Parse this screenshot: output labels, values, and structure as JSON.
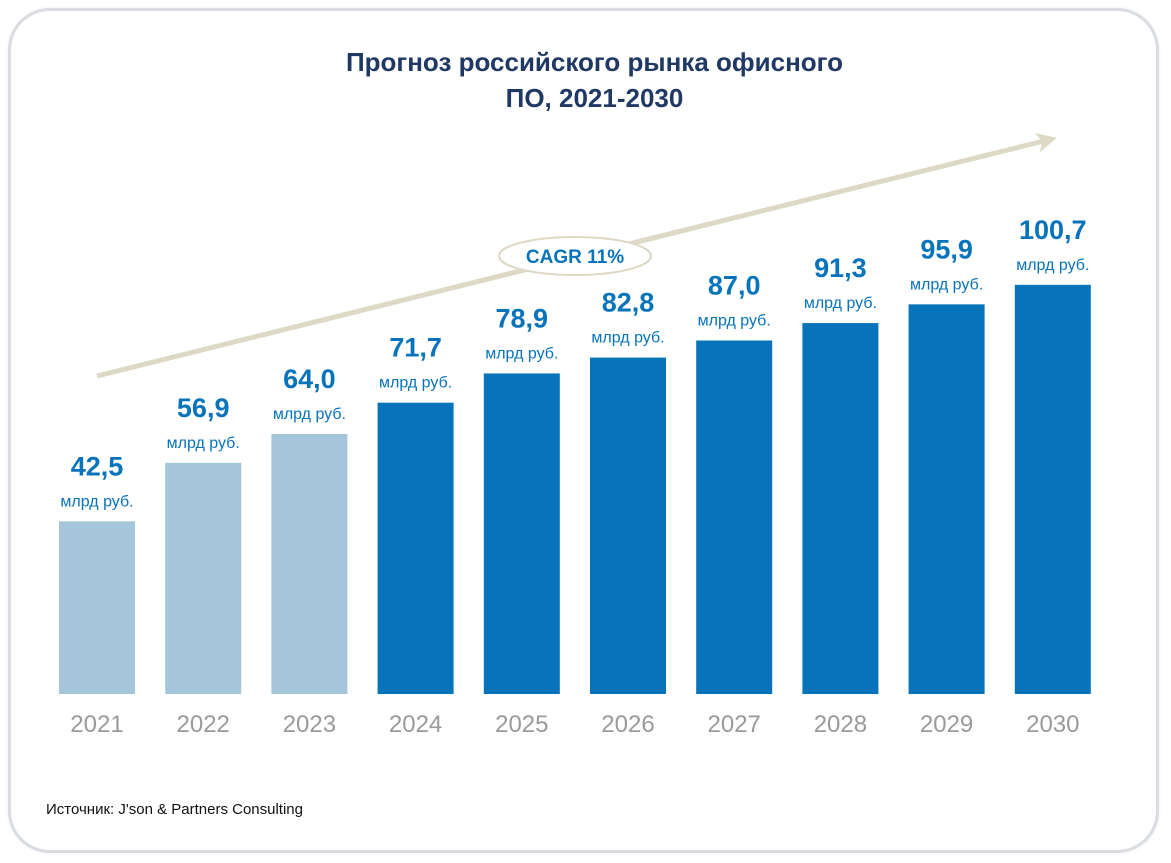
{
  "chart_data": {
    "type": "bar",
    "title_lines": [
      "Прогноз российского рынка офисного",
      "ПО, 2021-2030"
    ],
    "categories": [
      "2021",
      "2022",
      "2023",
      "2024",
      "2025",
      "2026",
      "2027",
      "2028",
      "2029",
      "2030"
    ],
    "values": [
      42.5,
      56.9,
      64.0,
      71.7,
      78.9,
      82.8,
      87.0,
      91.3,
      95.9,
      100.7
    ],
    "value_labels": [
      "42,5",
      "56,9",
      "64,0",
      "71,7",
      "78,9",
      "82,8",
      "87,0",
      "91,3",
      "95,9",
      "100,7"
    ],
    "unit": "млрд руб.",
    "historical_count": 3,
    "annotation": "CAGR 11%",
    "ylim": [
      0,
      105
    ],
    "xlabel": "",
    "ylabel": "",
    "grid": false,
    "legend": "none"
  },
  "source": "Источник: J'son & Partners Consulting",
  "colors": {
    "title": "#1f3864",
    "historical_bar": "#a5c5da",
    "forecast_bar": "#0773ba",
    "value_label": "#0773ba",
    "tick_label": "#9a9a9a",
    "arrow": "#ddd9c4",
    "frame": "#d9dde2"
  }
}
